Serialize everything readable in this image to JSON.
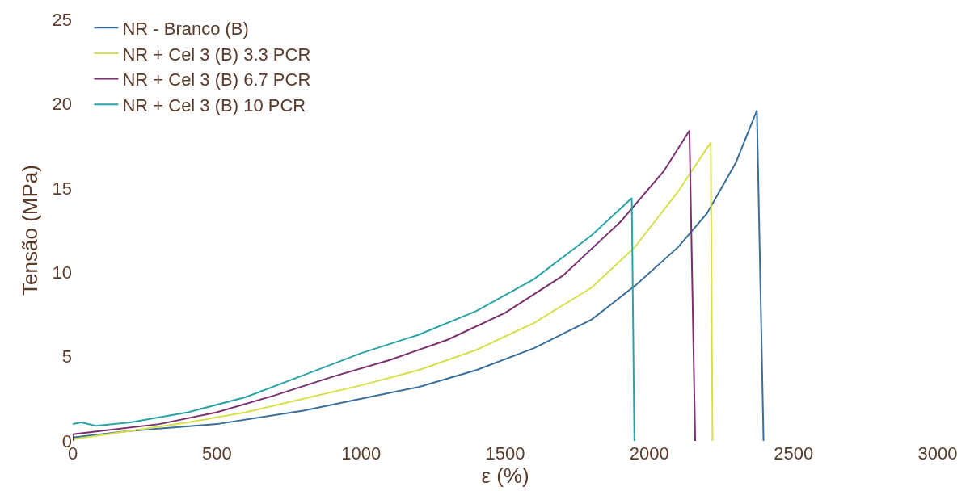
{
  "chart_data": {
    "type": "line",
    "xlabel": "ε (%)",
    "ylabel": "Tensão (MPa)",
    "xlim": [
      0,
      3000
    ],
    "ylim": [
      0,
      25
    ],
    "xticks": [
      0,
      500,
      1000,
      1500,
      2000,
      2500,
      3000
    ],
    "yticks": [
      0,
      5,
      10,
      15,
      20,
      25
    ],
    "legend": "top left",
    "marker": "none",
    "line_style": "solid",
    "series": [
      {
        "name": "NR - Branco (B)",
        "color": "#3a6f9a",
        "x": [
          0,
          200,
          500,
          800,
          1000,
          1200,
          1400,
          1600,
          1800,
          1950,
          2100,
          2200,
          2300,
          2373,
          2396
        ],
        "values": [
          0.2,
          0.6,
          1.0,
          1.8,
          2.5,
          3.2,
          4.2,
          5.5,
          7.2,
          9.2,
          11.5,
          13.5,
          16.5,
          19.6,
          0
        ]
      },
      {
        "name": "NR + Cel 3 (B) 3.3 PCR",
        "color": "#d7e04a",
        "x": [
          0,
          200,
          400,
          600,
          800,
          1000,
          1200,
          1400,
          1600,
          1800,
          1950,
          2100,
          2213,
          2219
        ],
        "values": [
          0.1,
          0.6,
          1.1,
          1.7,
          2.5,
          3.3,
          4.2,
          5.4,
          7.0,
          9.1,
          11.5,
          14.8,
          17.7,
          0
        ]
      },
      {
        "name": "NR + Cel 3 (B) 6.7 PCR",
        "color": "#7a2f6e",
        "x": [
          0,
          0,
          100,
          300,
          500,
          700,
          900,
          1100,
          1300,
          1500,
          1700,
          1900,
          2050,
          2139,
          2159
        ],
        "values": [
          0,
          0.4,
          0.6,
          1.0,
          1.7,
          2.7,
          3.8,
          4.8,
          6.0,
          7.6,
          9.8,
          13.0,
          16.0,
          18.4,
          0
        ]
      },
      {
        "name": "NR + Cel 3 (B) 10 PCR",
        "color": "#2aa3a8",
        "x": [
          0,
          30,
          80,
          200,
          400,
          600,
          800,
          1000,
          1200,
          1400,
          1600,
          1800,
          1939,
          1948
        ],
        "values": [
          1.0,
          1.1,
          0.9,
          1.1,
          1.7,
          2.6,
          3.9,
          5.2,
          6.3,
          7.7,
          9.6,
          12.2,
          14.4,
          0
        ]
      }
    ]
  }
}
